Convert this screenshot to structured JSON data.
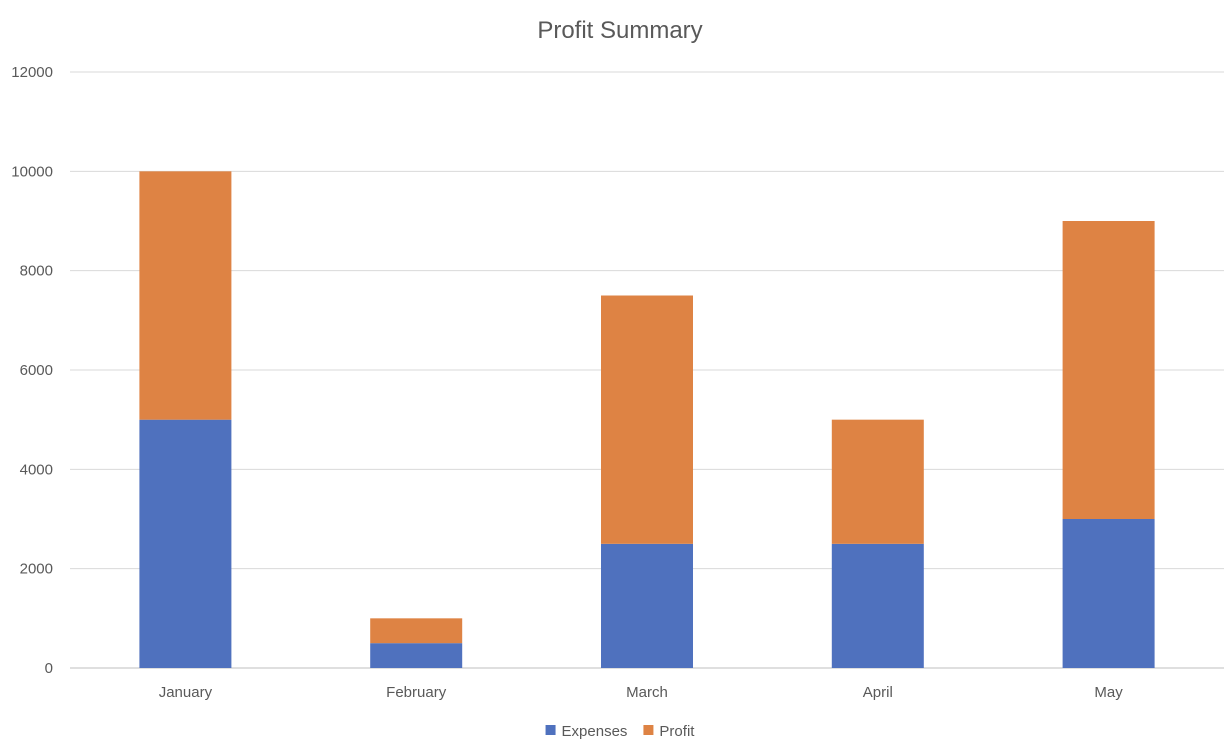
{
  "chart_data": {
    "type": "bar",
    "stacked": true,
    "title": "Profit Summary",
    "xlabel": "",
    "ylabel": "",
    "categories": [
      "January",
      "February",
      "March",
      "April",
      "May"
    ],
    "series": [
      {
        "name": "Expenses",
        "values": [
          5000,
          500,
          2500,
          2500,
          3000
        ],
        "color": "#4f71be"
      },
      {
        "name": "Profit",
        "values": [
          5000,
          500,
          5000,
          2500,
          6000
        ],
        "color": "#de8344"
      }
    ],
    "ylim": [
      0,
      12000
    ],
    "yticks": [
      0,
      2000,
      4000,
      6000,
      8000,
      10000,
      12000
    ],
    "grid": true,
    "legend_position": "bottom"
  }
}
